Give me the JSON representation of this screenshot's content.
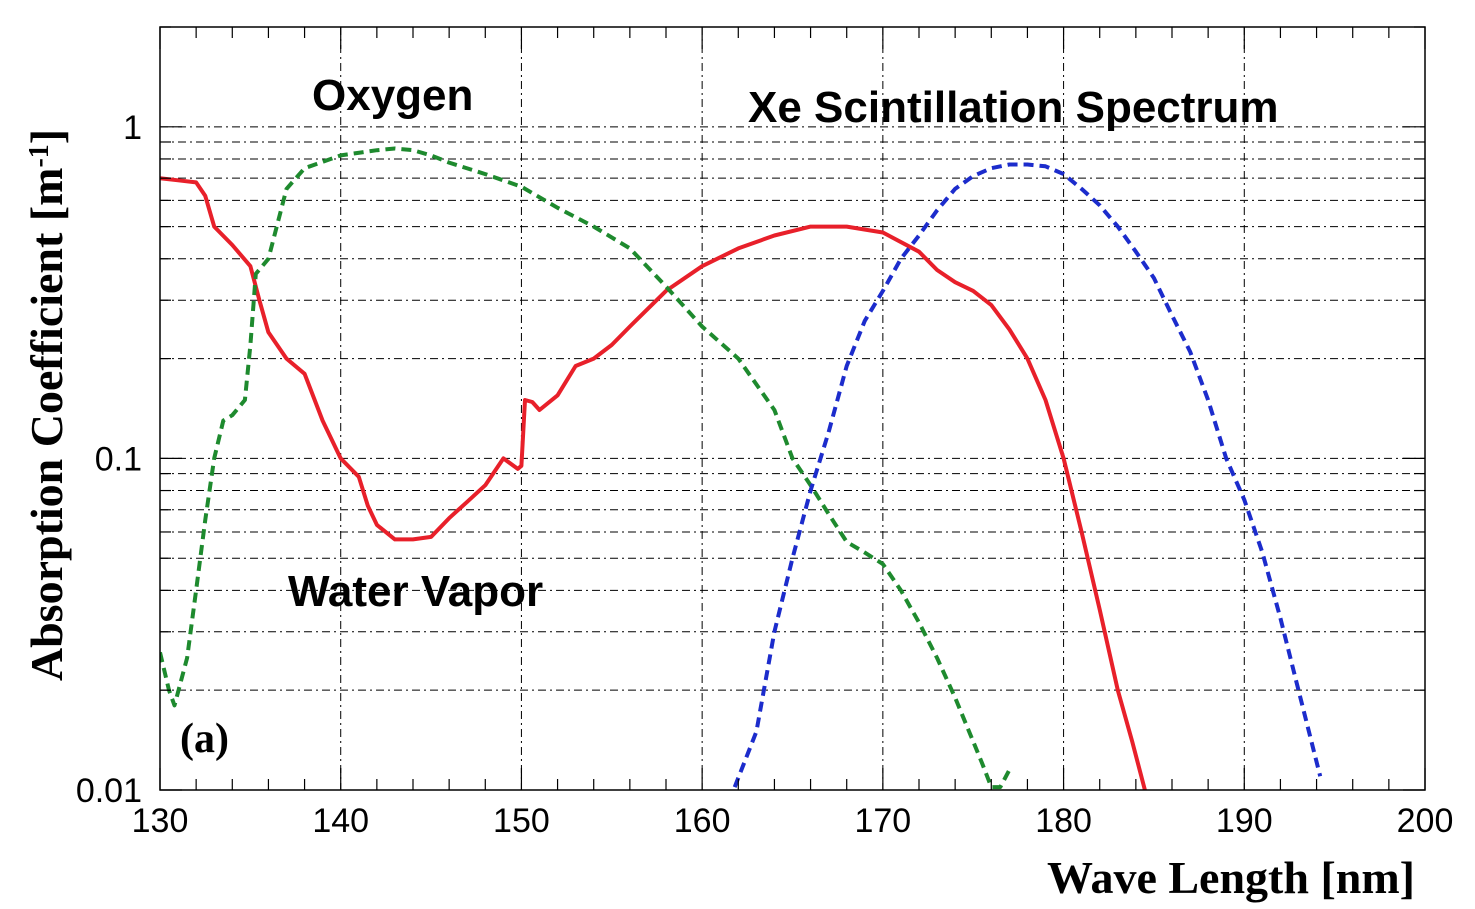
{
  "chart_data": {
    "type": "line",
    "xlabel": "Wave Length [nm]",
    "ylabel": "Absorption Coefficient [m-1]",
    "ylabel_main": "Absorption Coefficient [m",
    "ylabel_sup": "-1",
    "ylabel_end": "]",
    "panel_label": "(a)",
    "xlim": [
      130,
      200
    ],
    "ylim": [
      0.01,
      2
    ],
    "yscale": "log",
    "grid": true,
    "x_ticks": [
      130,
      140,
      150,
      160,
      170,
      180,
      190,
      200
    ],
    "x_tick_labels": [
      "130",
      "140",
      "150",
      "160",
      "170",
      "180",
      "190",
      "200"
    ],
    "y_ticks": [
      0.01,
      0.1,
      1
    ],
    "y_tick_labels": [
      "0.01",
      "0.1",
      "1"
    ],
    "series": [
      {
        "label": "Water Vapor",
        "color": "#e8202a",
        "style": "solid",
        "points": [
          [
            130,
            0.7
          ],
          [
            131,
            0.69
          ],
          [
            132,
            0.68
          ],
          [
            132.5,
            0.62
          ],
          [
            133,
            0.5
          ],
          [
            134,
            0.44
          ],
          [
            135,
            0.38
          ],
          [
            135.5,
            0.3
          ],
          [
            136,
            0.24
          ],
          [
            137,
            0.2
          ],
          [
            138,
            0.18
          ],
          [
            139,
            0.13
          ],
          [
            140,
            0.1
          ],
          [
            141,
            0.088
          ],
          [
            141.5,
            0.072
          ],
          [
            142,
            0.063
          ],
          [
            143,
            0.057
          ],
          [
            144,
            0.057
          ],
          [
            145,
            0.058
          ],
          [
            146,
            0.066
          ],
          [
            147,
            0.074
          ],
          [
            148,
            0.083
          ],
          [
            149,
            0.1
          ],
          [
            149.8,
            0.093
          ],
          [
            150,
            0.095
          ],
          [
            150.2,
            0.15
          ],
          [
            150.6,
            0.148
          ],
          [
            151,
            0.14
          ],
          [
            152,
            0.155
          ],
          [
            153,
            0.19
          ],
          [
            154,
            0.2
          ],
          [
            155,
            0.22
          ],
          [
            156,
            0.25
          ],
          [
            158,
            0.32
          ],
          [
            160,
            0.38
          ],
          [
            162,
            0.43
          ],
          [
            164,
            0.47
          ],
          [
            166,
            0.5
          ],
          [
            168,
            0.5
          ],
          [
            170,
            0.48
          ],
          [
            172,
            0.42
          ],
          [
            173,
            0.37
          ],
          [
            174,
            0.34
          ],
          [
            175,
            0.32
          ],
          [
            176,
            0.29
          ],
          [
            177,
            0.245
          ],
          [
            178,
            0.2
          ],
          [
            179,
            0.15
          ],
          [
            180,
            0.1
          ],
          [
            181,
            0.06
          ],
          [
            182,
            0.035
          ],
          [
            183,
            0.02
          ],
          [
            183.8,
            0.014
          ],
          [
            184.5,
            0.01
          ]
        ]
      },
      {
        "label": "Oxygen",
        "color": "#1e8a2e",
        "style": "dashed",
        "points": [
          [
            130,
            0.026
          ],
          [
            130.5,
            0.02
          ],
          [
            130.8,
            0.018
          ],
          [
            131.5,
            0.025
          ],
          [
            132,
            0.04
          ],
          [
            132.5,
            0.065
          ],
          [
            133,
            0.1
          ],
          [
            133.5,
            0.13
          ],
          [
            134,
            0.135
          ],
          [
            134.7,
            0.15
          ],
          [
            135,
            0.22
          ],
          [
            135.3,
            0.36
          ],
          [
            136,
            0.4
          ],
          [
            137,
            0.65
          ],
          [
            138,
            0.75
          ],
          [
            140,
            0.82
          ],
          [
            142,
            0.85
          ],
          [
            143,
            0.86
          ],
          [
            144,
            0.85
          ],
          [
            145,
            0.82
          ],
          [
            146,
            0.78
          ],
          [
            148,
            0.72
          ],
          [
            150,
            0.66
          ],
          [
            152,
            0.57
          ],
          [
            154,
            0.5
          ],
          [
            156,
            0.43
          ],
          [
            158,
            0.33
          ],
          [
            160,
            0.25
          ],
          [
            162,
            0.2
          ],
          [
            164,
            0.14
          ],
          [
            165,
            0.1
          ],
          [
            166,
            0.083
          ],
          [
            167,
            0.068
          ],
          [
            168,
            0.056
          ],
          [
            169,
            0.052
          ],
          [
            170,
            0.048
          ],
          [
            171,
            0.04
          ],
          [
            172,
            0.032
          ],
          [
            173,
            0.025
          ],
          [
            174,
            0.019
          ],
          [
            175,
            0.014
          ],
          [
            175.5,
            0.012
          ],
          [
            176,
            0.0102
          ],
          [
            176.5,
            0.0102
          ],
          [
            177,
            0.0115
          ]
        ]
      },
      {
        "label": "Xe Scintillation Spectrum",
        "color": "#1c2ccc",
        "style": "dashed",
        "points": [
          [
            161.8,
            0.0102
          ],
          [
            163,
            0.015
          ],
          [
            164,
            0.03
          ],
          [
            165,
            0.05
          ],
          [
            166,
            0.08
          ],
          [
            167,
            0.12
          ],
          [
            168,
            0.19
          ],
          [
            169,
            0.26
          ],
          [
            170,
            0.32
          ],
          [
            171,
            0.4
          ],
          [
            172,
            0.47
          ],
          [
            173,
            0.56
          ],
          [
            174,
            0.65
          ],
          [
            175,
            0.71
          ],
          [
            176,
            0.75
          ],
          [
            177,
            0.77
          ],
          [
            178,
            0.77
          ],
          [
            179,
            0.76
          ],
          [
            180,
            0.72
          ],
          [
            181,
            0.65
          ],
          [
            182,
            0.58
          ],
          [
            183,
            0.5
          ],
          [
            184,
            0.42
          ],
          [
            185,
            0.35
          ],
          [
            186,
            0.27
          ],
          [
            187,
            0.21
          ],
          [
            188,
            0.15
          ],
          [
            189,
            0.1
          ],
          [
            190,
            0.075
          ],
          [
            191,
            0.052
          ],
          [
            192,
            0.033
          ],
          [
            193,
            0.02
          ],
          [
            194.2,
            0.011
          ]
        ]
      }
    ]
  }
}
